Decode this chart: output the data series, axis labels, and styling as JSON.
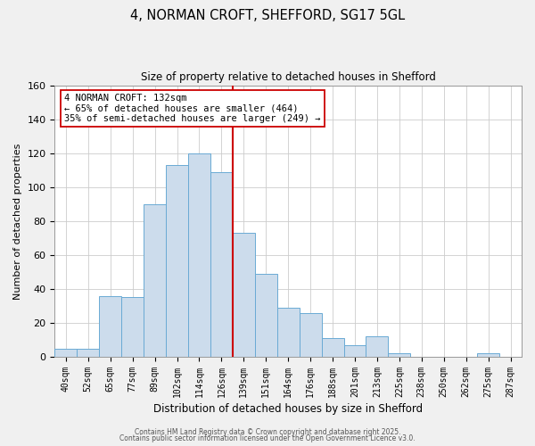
{
  "title": "4, NORMAN CROFT, SHEFFORD, SG17 5GL",
  "subtitle": "Size of property relative to detached houses in Shefford",
  "xlabel": "Distribution of detached houses by size in Shefford",
  "ylabel": "Number of detached properties",
  "bin_labels": [
    "40sqm",
    "52sqm",
    "65sqm",
    "77sqm",
    "89sqm",
    "102sqm",
    "114sqm",
    "126sqm",
    "139sqm",
    "151sqm",
    "164sqm",
    "176sqm",
    "188sqm",
    "201sqm",
    "213sqm",
    "225sqm",
    "238sqm",
    "250sqm",
    "262sqm",
    "275sqm",
    "287sqm"
  ],
  "bar_values": [
    5,
    5,
    36,
    35,
    90,
    113,
    120,
    109,
    73,
    49,
    29,
    26,
    11,
    7,
    12,
    2,
    0,
    0,
    0,
    2,
    0
  ],
  "bar_color": "#ccdcec",
  "bar_edge_color": "#6aaad4",
  "vline_color": "#cc0000",
  "ylim": [
    0,
    160
  ],
  "yticks": [
    0,
    20,
    40,
    60,
    80,
    100,
    120,
    140,
    160
  ],
  "annotation_line1": "4 NORMAN CROFT: 132sqm",
  "annotation_line2": "← 65% of detached houses are smaller (464)",
  "annotation_line3": "35% of semi-detached houses are larger (249) →",
  "footer1": "Contains HM Land Registry data © Crown copyright and database right 2025.",
  "footer2": "Contains public sector information licensed under the Open Government Licence v3.0.",
  "background_color": "#f0f0f0",
  "plot_background_color": "#ffffff",
  "grid_color": "#cccccc"
}
